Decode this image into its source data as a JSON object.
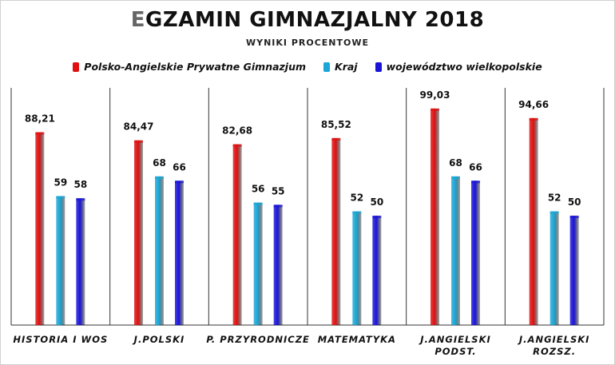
{
  "chart_data": {
    "type": "bar",
    "title_first_letter": "E",
    "title_rest": "GZAMIN GIMNAZJALNY 2018",
    "subtitle": "WYNIKI PROCENTOWE",
    "categories": [
      [
        "HISTORIA I WOS"
      ],
      [
        "J.POLSKI"
      ],
      [
        "P. PRZYRODNICZE"
      ],
      [
        "MATEMATYKA"
      ],
      [
        "J.ANGIELSKI",
        "PODST."
      ],
      [
        "J.ANGIELSKI",
        "ROZSZ."
      ]
    ],
    "series": [
      {
        "name": "Polsko-Angielskie Prywatne Gimnazjum",
        "color": "#e01010",
        "values": [
          88.21,
          84.47,
          82.68,
          85.52,
          99.03,
          94.66
        ],
        "labels": [
          "88,21",
          "84,47",
          "82,68",
          "85,52",
          "99,03",
          "94,66"
        ]
      },
      {
        "name": "Kraj",
        "color": "#1aa6d6",
        "values": [
          59,
          68,
          56,
          52,
          68,
          52
        ],
        "labels": [
          "59",
          "68",
          "56",
          "52",
          "68",
          "52"
        ]
      },
      {
        "name": "województwo wielkopolskie",
        "color": "#1a14d8",
        "values": [
          58,
          66,
          55,
          50,
          66,
          50
        ],
        "labels": [
          "58",
          "66",
          "55",
          "50",
          "66",
          "50"
        ]
      }
    ],
    "ylim": [
      0,
      110
    ],
    "legend_position": "top"
  }
}
